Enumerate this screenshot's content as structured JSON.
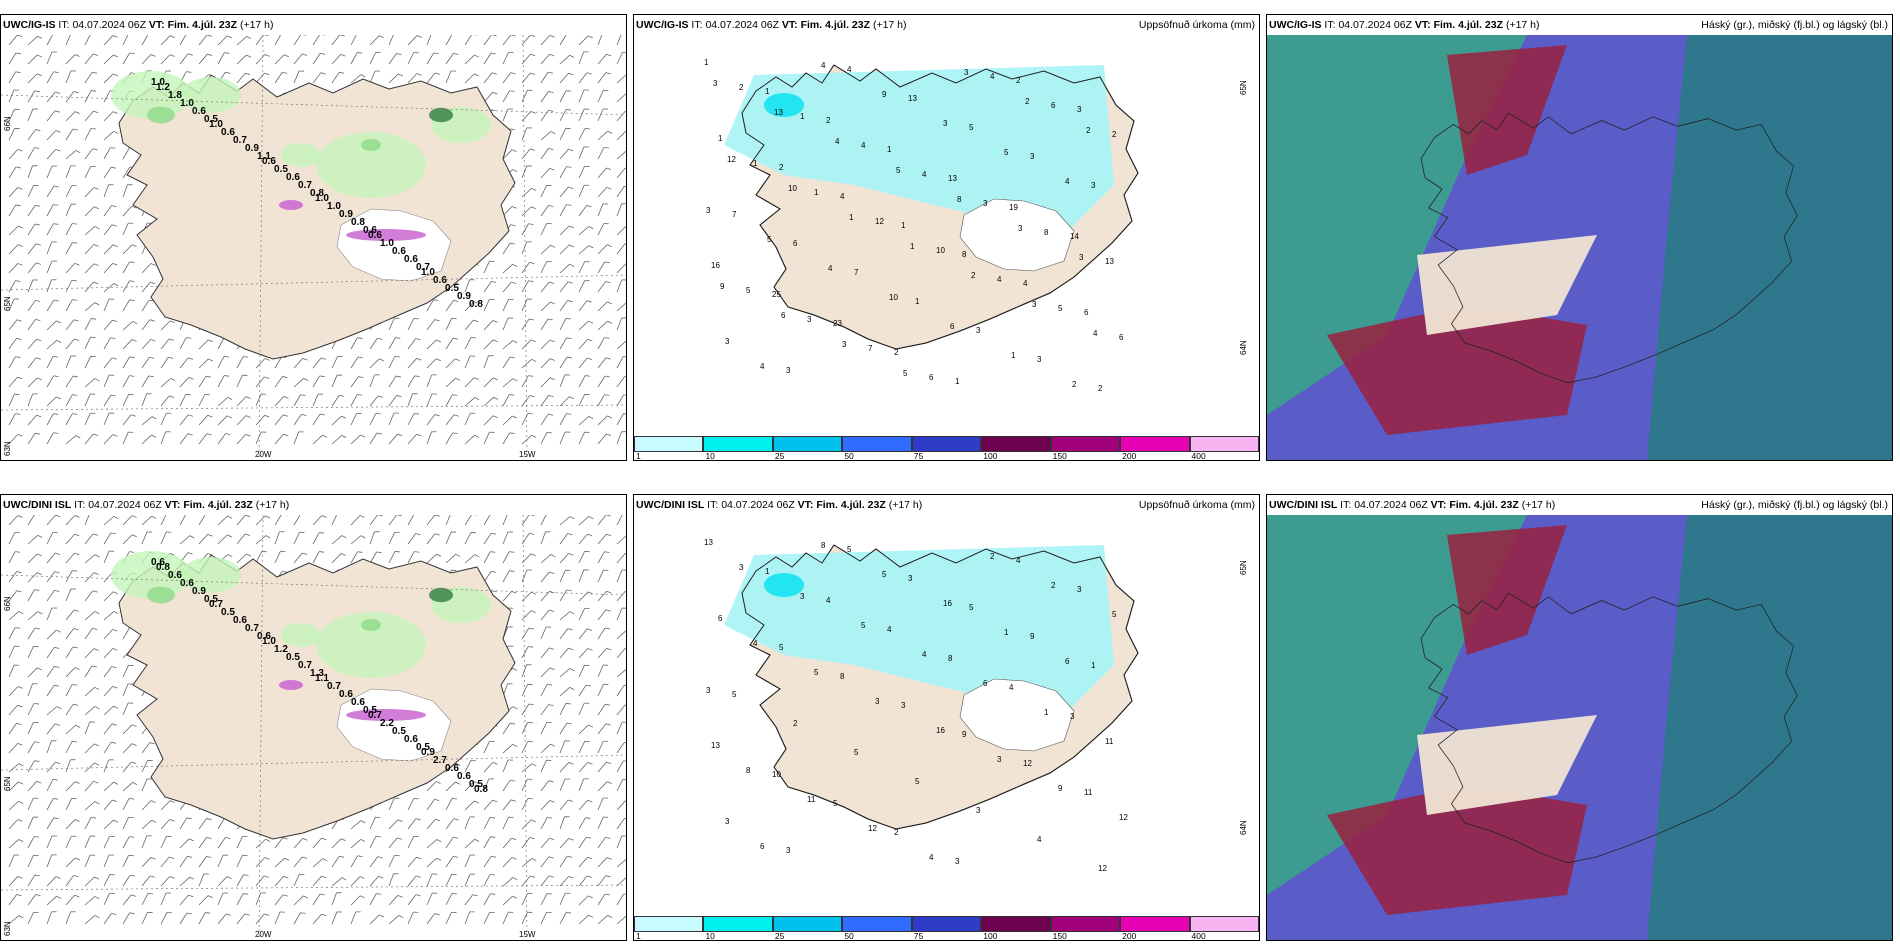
{
  "panels": [
    {
      "id": "p1",
      "model": "UWC/IG-IS",
      "it_label": "IT:",
      "it": "04.07.2024 06Z",
      "vt_label": "VT:",
      "vt": "Fim. 4.júl. 23Z",
      "lead": "(+17 h)",
      "right_title": "",
      "map_type": "wind",
      "values": [
        "1.0",
        "0.5",
        "1.1",
        "0.8",
        "0.6",
        "0.7",
        "0.8",
        "0.6",
        "0.9",
        "0.7",
        "0.8",
        "0.6",
        "0.9",
        "1.0",
        "0.7",
        "0.6",
        "0.9",
        "0.6",
        "0.5",
        "1.8",
        "0.6",
        "0.5",
        "1.0",
        "1.0",
        "0.6",
        "1.2",
        "1.0",
        "0.6",
        "1.0",
        "0.6",
        "1.0"
      ],
      "axis_labels": [
        "66N",
        "65N",
        "63N",
        "20W",
        "15W"
      ]
    },
    {
      "id": "p2",
      "model": "UWC/IG-IS",
      "it_label": "IT:",
      "it": "04.07.2024 06Z",
      "vt_label": "VT:",
      "vt": "Fim. 4.júl. 23Z",
      "lead": "(+17 h)",
      "right_title": "Uppsöfnuð úrkoma (mm)",
      "map_type": "precip",
      "values": [
        "1",
        "1",
        "2",
        "1",
        "13",
        "19",
        "14",
        "16",
        "25",
        "23",
        "2",
        "1",
        "2",
        "3",
        "1",
        "2",
        "4",
        "1",
        "8",
        "4",
        "6",
        "3",
        "3",
        "4",
        "13",
        "5",
        "3",
        "3",
        "7",
        "6",
        "7",
        "1",
        "3",
        "3",
        "2",
        "2",
        "1",
        "4",
        "4",
        "3",
        "8",
        "13",
        "5",
        "3",
        "7",
        "6",
        "4",
        "6",
        "2",
        "1",
        "1",
        "12",
        "10",
        "4",
        "5",
        "6",
        "4",
        "4",
        "9",
        "3",
        "5",
        "4",
        "3",
        "5",
        "4",
        "10",
        "6",
        "1",
        "2",
        "3",
        "13",
        "4",
        "5",
        "8",
        "3",
        "3",
        "9",
        "6",
        "3",
        "5",
        "3",
        "2",
        "2",
        "12",
        "10",
        "1",
        "1",
        "2",
        "3",
        "4"
      ],
      "axis_labels": [
        "65N",
        "64N"
      ]
    },
    {
      "id": "p3",
      "model": "UWC/IG-IS",
      "it_label": "IT:",
      "it": "04.07.2024 06Z",
      "vt_label": "VT:",
      "vt": "Fim. 4.júl. 23Z",
      "lead": "(+17 h)",
      "right_title": "Háský (gr.), miðský (fj.bl.) og lágský (bl.)",
      "map_type": "cloud",
      "values": [],
      "axis_labels": []
    },
    {
      "id": "p4",
      "model": "UWC/DINI ISL",
      "it_label": "IT:",
      "it": "04.07.2024 06Z",
      "vt_label": "VT:",
      "vt": "Fim. 4.júl. 23Z",
      "lead": "(+17 h)",
      "right_title": "",
      "map_type": "wind",
      "values": [
        "0.6",
        "0.5",
        "0.6",
        "1.3",
        "0.5",
        "0.5",
        "0.5",
        "0.9",
        "0.7",
        "0.7",
        "0.6",
        "0.6",
        "0.6",
        "0.6",
        "0.6",
        "0.5",
        "0.6",
        "0.5",
        "0.6",
        "0.6",
        "0.5",
        "1.2",
        "0.7",
        "2.2",
        "2.7",
        "0.8",
        "0.7",
        "1.0",
        "1.1",
        "0.7",
        "0.9",
        "0.8"
      ],
      "axis_labels": [
        "66N",
        "65N",
        "63N",
        "20W",
        "15W"
      ]
    },
    {
      "id": "p5",
      "model": "UWC/DINI ISL",
      "it_label": "IT:",
      "it": "04.07.2024 06Z",
      "vt_label": "VT:",
      "vt": "Fim. 4.júl. 23Z",
      "lead": "(+17 h)",
      "right_title": "Uppsöfnuð úrkoma (mm)",
      "map_type": "precip",
      "values": [
        "13",
        "1",
        "4",
        "4",
        "8",
        "4",
        "3",
        "13",
        "10",
        "5",
        "2",
        "3",
        "4",
        "3",
        "6",
        "5",
        "8",
        "3",
        "9",
        "12",
        "11",
        "3",
        "3",
        "5",
        "3",
        "5",
        "9",
        "1",
        "5",
        "2",
        "5",
        "5",
        "3",
        "4",
        "12",
        "3",
        "3",
        "5",
        "4",
        "6",
        "1",
        "11",
        "8",
        "11",
        "12",
        "4",
        "2",
        "2",
        "5",
        "4",
        "5",
        "3",
        "16",
        "3",
        "9",
        "12",
        "6",
        "8",
        "5",
        "16",
        "1",
        "6",
        "3"
      ],
      "axis_labels": [
        "65N",
        "64N"
      ]
    },
    {
      "id": "p6",
      "model": "UWC/DINI ISL",
      "it_label": "IT:",
      "it": "04.07.2024 06Z",
      "vt_label": "VT:",
      "vt": "Fim. 4.júl. 23Z",
      "lead": "(+17 h)",
      "right_title": "Háský (gr.), miðský (fj.bl.) og lágský (bl.)",
      "map_type": "cloud",
      "values": [],
      "axis_labels": []
    }
  ],
  "colorbar": {
    "ticks": [
      "1",
      "10",
      "25",
      "50",
      "75",
      "100",
      "150",
      "200",
      "400"
    ],
    "colors": [
      "#c8fbff",
      "#00f0f0",
      "#00c0ee",
      "#2f6cff",
      "#2f3cc8",
      "#6e0050",
      "#a0007a",
      "#e800b4",
      "#f7b4f0"
    ]
  },
  "colors": {
    "land": "#f1e4d4",
    "ocean": "#ffffff",
    "precip": "#a6f4f7",
    "light_green": "#c4f5b9",
    "green": "#8fd98a",
    "dark_green": "#2f7d3c",
    "purple": "#c85cd0",
    "cloud_high": "#5a5cc8",
    "cloud_mid": "#9a2040",
    "cloud_low": "#3aa28a"
  }
}
